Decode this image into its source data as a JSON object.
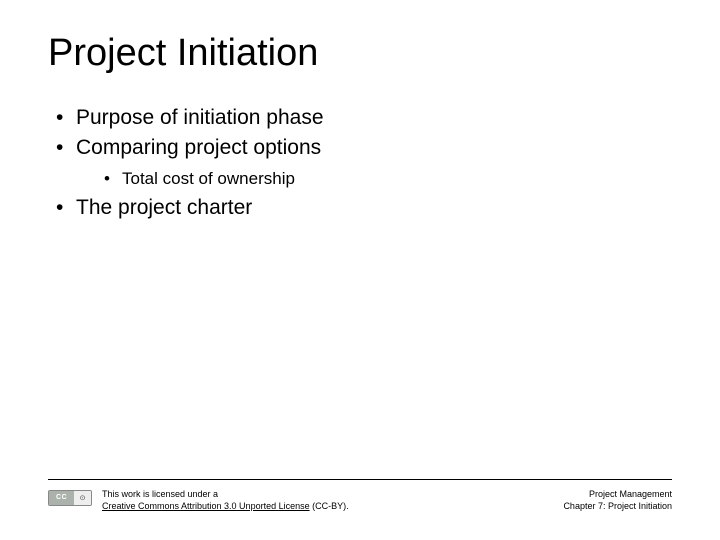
{
  "title": "Project Initiation",
  "bullets": {
    "item1": "Purpose of initiation phase",
    "item2": "Comparing project options",
    "item2_sub1": "Total cost of ownership",
    "item3": "The project charter"
  },
  "footer": {
    "license_line1": "This work is licensed under a",
    "license_link": "Creative Commons Attribution 3.0 Unported License",
    "license_suffix": " (CC-BY).",
    "cc_label": "CC",
    "cc_by": "⊙",
    "right_line1": "Project Management",
    "right_line2": "Chapter 7: Project Initiation"
  }
}
